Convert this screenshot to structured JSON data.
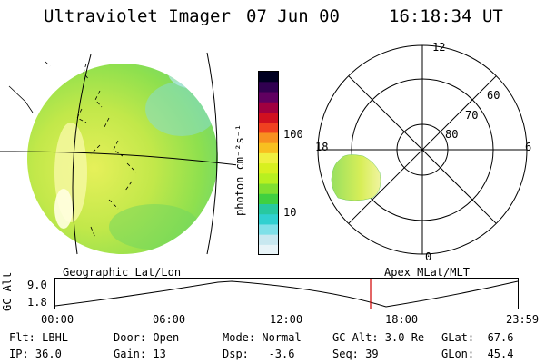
{
  "header": {
    "instrument": "Ultraviolet Imager",
    "date": "07 Jun 00",
    "time": "16:18:34 UT"
  },
  "colorbar": {
    "unit_label": "photon cm⁻²s⁻¹",
    "ticks": [
      "100",
      "10"
    ],
    "colors": [
      "#e8f4f8",
      "#c8e8f0",
      "#7fe0e8",
      "#30d0d0",
      "#28c8a0",
      "#40d040",
      "#80e030",
      "#b8f020",
      "#d8f020",
      "#f0f040",
      "#f8c020",
      "#f89020",
      "#f04020",
      "#d01020",
      "#a00040",
      "#600060",
      "#300050",
      "#000020"
    ]
  },
  "polar": {
    "mlt_labels": {
      "top": "12",
      "left": "18",
      "right": "6",
      "bottom": "0"
    },
    "lat_labels": [
      "60",
      "70",
      "80"
    ],
    "left_label": "Geographic Lat/Lon",
    "right_label": "Apex MLat/MLT"
  },
  "altitude_plot": {
    "ylabel": "GC Alt",
    "yticks": [
      "9.0",
      "1.8"
    ],
    "xticks": [
      "00:00",
      "06:00",
      "12:00",
      "18:00",
      "23:59"
    ]
  },
  "info": {
    "flt": "Flt: LBHL",
    "ip": "IP: 36.0",
    "door": "Door: Open",
    "gain": "Gain: 13",
    "mode": "Mode: Normal",
    "dsp": "Dsp:   -3.6",
    "gcalt": "GC Alt: 3.0 Re",
    "seq": "Seq: 39",
    "glat": "GLat:  67.6",
    "glon": "GLon:  45.4"
  }
}
